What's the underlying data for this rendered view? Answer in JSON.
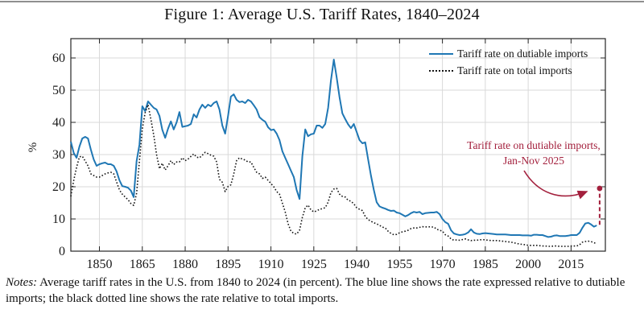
{
  "title": "Figure 1: Average U.S. Tariff Rates, 1840–2024",
  "legend": [
    {
      "label": "Tariff rate on dutiable imports",
      "style": "solid",
      "color": "#1f77b4"
    },
    {
      "label": "Tariff rate on total imports",
      "style": "dotted",
      "color": "#151515"
    }
  ],
  "annotation": {
    "label": "Tariff rate on dutiable imports, Jan-Nov 2025",
    "color": "#a3203d"
  },
  "notes": {
    "label": "Notes:",
    "text": " Average tariff rates in the U.S. from 1840 to 2024 (in percent). The blue line shows the rate expressed relative to dutiable imports; the black dotted line shows the rate relative to total imports."
  },
  "colors": {
    "dutiable_line": "#1f77b4",
    "total_line": "#151515",
    "annotation_red": "#a3203d",
    "grid": "#d9d9d9",
    "axis": "#262626"
  },
  "chart_data": {
    "type": "line",
    "title": "Figure 1: Average U.S. Tariff Rates, 1840–2024",
    "xlabel": "",
    "ylabel": "%",
    "xlim": [
      1840,
      2027
    ],
    "ylim": [
      0,
      66
    ],
    "x_ticks": [
      1850,
      1865,
      1880,
      1895,
      1910,
      1925,
      1940,
      1955,
      1970,
      1985,
      2000,
      2015
    ],
    "y_ticks": [
      0,
      10,
      20,
      30,
      40,
      50,
      60
    ],
    "grid": true,
    "legend_position": "top-right",
    "series": [
      {
        "name": "Tariff rate on dutiable imports",
        "style": "solid",
        "color": "#1f77b4",
        "start_year": 1840,
        "values": [
          34,
          30.5,
          29,
          32.5,
          35,
          35.5,
          35,
          31.5,
          28.5,
          26.5,
          27,
          27.3,
          27.5,
          27,
          27,
          26.5,
          24.8,
          22,
          20.2,
          20,
          19.7,
          18.8,
          16.8,
          28,
          33,
          45,
          43.5,
          46.5,
          45.5,
          44.5,
          44,
          42,
          37.7,
          35.2,
          38,
          40.3,
          37.8,
          40,
          43.2,
          38.6,
          38.8,
          39,
          39.5,
          42.5,
          41.5,
          44,
          45.5,
          44.5,
          45.5,
          45,
          46,
          46.5,
          44,
          39,
          36.5,
          42,
          48,
          48.7,
          47,
          46.3,
          46.5,
          46,
          47,
          46.5,
          45.3,
          44,
          41.6,
          40.8,
          40.2,
          38.5,
          37.6,
          37.8,
          36.5,
          34.5,
          31,
          29,
          27,
          25,
          23,
          19,
          16.2,
          29.5,
          37.8,
          35.7,
          36.3,
          36.5,
          39,
          39,
          38.3,
          39.5,
          44.5,
          53,
          59.5,
          54,
          47.8,
          42.8,
          41,
          39.4,
          38.2,
          39.5,
          37,
          34.5,
          33.5,
          33.8,
          28.5,
          23.5,
          19,
          15.2,
          13.9,
          13.5,
          13.2,
          12.8,
          12.5,
          12.6,
          12,
          11.8,
          11.3,
          10.8,
          11.2,
          11.8,
          12.2,
          12,
          12.2,
          11.5,
          11.8,
          11.9,
          12,
          12,
          12.2,
          11.5,
          10,
          9,
          8.5,
          6.5,
          5.5,
          5.2,
          5,
          5.1,
          5.3,
          5.8,
          6.8,
          5.8,
          5.4,
          5.3,
          5.5,
          5.6,
          5.5,
          5.4,
          5.3,
          5.2,
          5.2,
          5.2,
          5.2,
          5.1,
          5,
          5,
          5,
          5,
          4.9,
          4.9,
          4.9,
          4.8,
          5.1,
          5.1,
          5,
          5,
          4.7,
          4.4,
          4.5,
          4.8,
          4.9,
          4.7,
          4.7,
          4.7,
          4.8,
          5,
          5,
          5,
          5.7,
          7.3,
          8.6,
          8.8,
          8.3,
          7.6,
          8
        ]
      },
      {
        "name": "Tariff rate on total imports",
        "style": "dotted",
        "color": "#151515",
        "start_year": 1840,
        "values": [
          17,
          22,
          26,
          29.3,
          29.5,
          28,
          26.5,
          24,
          23.5,
          23,
          23,
          23.5,
          24,
          24.3,
          24.5,
          24,
          21.5,
          19,
          17.7,
          16.8,
          16,
          14.8,
          14.2,
          18,
          28,
          38,
          43,
          45.5,
          41,
          36,
          30,
          25.6,
          27.3,
          25.2,
          26.5,
          28.1,
          26.9,
          27.7,
          27.7,
          29,
          28.1,
          28.6,
          29.4,
          30.2,
          29.2,
          29,
          29.8,
          30.7,
          30.3,
          29.8,
          29.5,
          27.7,
          22.3,
          21.4,
          18.5,
          20.1,
          20.6,
          24,
          28.1,
          29,
          28.6,
          28.3,
          27.7,
          27.7,
          26,
          24.5,
          24,
          22.6,
          23,
          22,
          21,
          20,
          18.5,
          17.7,
          14.9,
          12.2,
          8.5,
          6.2,
          5.5,
          5.3,
          6.5,
          10.5,
          13.5,
          14.3,
          12.8,
          12.2,
          12.5,
          13,
          13.2,
          13.5,
          15.2,
          18.2,
          19.3,
          19.5,
          17.7,
          17,
          16.8,
          15.8,
          15.5,
          14.7,
          13.5,
          13,
          12.6,
          10.8,
          9.8,
          9.3,
          8.8,
          8.5,
          8,
          7.5,
          7.2,
          6.2,
          5.5,
          5.1,
          5.2,
          5.7,
          6,
          6.2,
          6.5,
          7,
          7.2,
          7.2,
          7.4,
          7.6,
          7.5,
          7.6,
          7.5,
          7.5,
          6.8,
          6.5,
          6.2,
          5.1,
          4.7,
          3.8,
          3.4,
          3.5,
          3.4,
          3.6,
          3.8,
          3.5,
          3.3,
          3.4,
          3.4,
          3.5,
          3.6,
          3.5,
          3.4,
          3.3,
          3.3,
          3.3,
          3.2,
          3.1,
          3,
          2.9,
          2.8,
          2.6,
          2.4,
          2.2,
          2.1,
          2,
          1.8,
          1.8,
          1.8,
          1.8,
          1.7,
          1.6,
          1.6,
          1.5,
          1.5,
          1.6,
          1.6,
          1.5,
          1.5,
          1.5,
          1.5,
          1.6,
          1.6,
          1.6,
          2,
          2.8,
          3,
          3.1,
          3,
          2.6,
          2.4
        ]
      }
    ],
    "annotation_point": {
      "series": "Tariff rate on dutiable imports",
      "period": "Jan-Nov 2025",
      "year": 2025,
      "value": 19.5,
      "dash_from_value": 8.2
    }
  }
}
